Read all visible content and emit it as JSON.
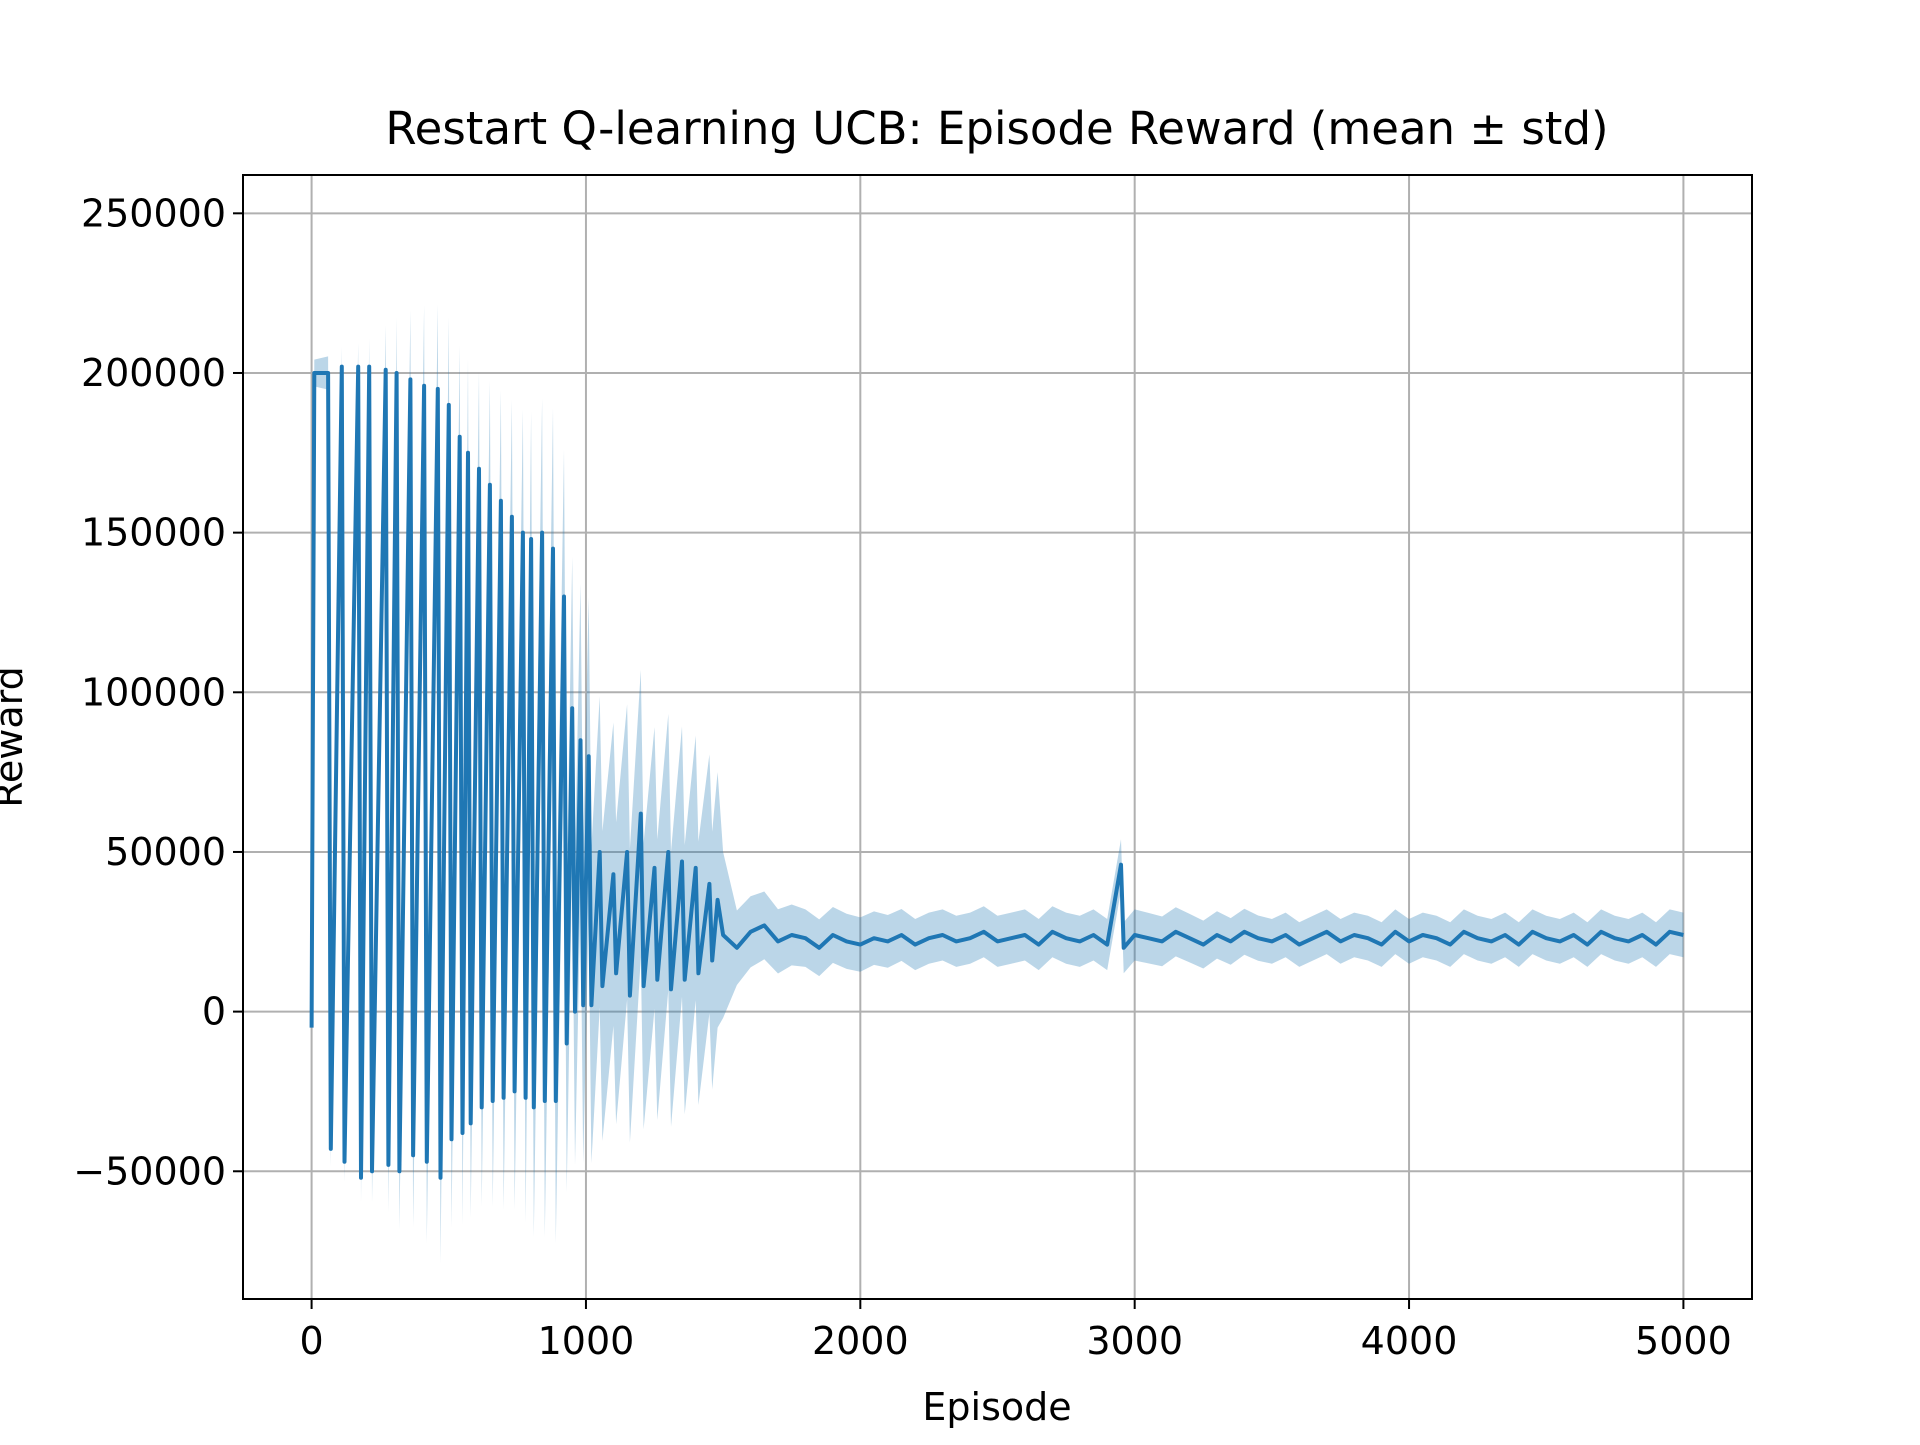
{
  "chart_data": {
    "type": "line",
    "title": "Restart Q-learning UCB: Episode Reward (mean ± std)",
    "xlabel": "Episode",
    "ylabel": "Reward",
    "xlim": [
      -250,
      5250
    ],
    "ylim": [
      -90000,
      262000
    ],
    "xticks": [
      0,
      1000,
      2000,
      3000,
      4000,
      5000
    ],
    "xtick_labels": [
      "0",
      "1000",
      "2000",
      "3000",
      "4000",
      "5000"
    ],
    "yticks": [
      -50000,
      0,
      50000,
      100000,
      150000,
      200000,
      250000
    ],
    "ytick_labels": [
      "−50000",
      "0",
      "50000",
      "100000",
      "150000",
      "200000",
      "250000"
    ],
    "grid": true,
    "legend": "none",
    "colors": {
      "mean": "#1f77b4",
      "band": "#1f77b4",
      "band_opacity": 0.3,
      "grid": "#b0b0b0"
    },
    "series": [
      {
        "stat": "mean",
        "x": [
          0,
          10,
          60,
          70,
          110,
          120,
          170,
          180,
          210,
          220,
          270,
          280,
          310,
          320,
          360,
          370,
          410,
          420,
          460,
          470,
          500,
          510,
          540,
          550,
          570,
          580,
          610,
          620,
          650,
          660,
          690,
          700,
          730,
          740,
          770,
          780,
          800,
          810,
          840,
          850,
          880,
          890,
          920,
          930,
          950,
          960,
          980,
          990,
          1010,
          1020,
          1050,
          1060,
          1100,
          1110,
          1150,
          1160,
          1200,
          1210,
          1250,
          1260,
          1300,
          1310,
          1350,
          1360,
          1400,
          1410,
          1450,
          1460,
          1480,
          1500,
          1550,
          1600,
          1650,
          1700,
          1750,
          1800,
          1850,
          1900,
          1950,
          2000,
          2050,
          2100,
          2150,
          2200,
          2250,
          2300,
          2350,
          2400,
          2450,
          2500,
          2550,
          2600,
          2650,
          2700,
          2750,
          2800,
          2850,
          2900,
          2950,
          2960,
          3000,
          3050,
          3100,
          3150,
          3200,
          3250,
          3300,
          3350,
          3400,
          3450,
          3500,
          3550,
          3600,
          3650,
          3700,
          3750,
          3800,
          3850,
          3900,
          3950,
          4000,
          4050,
          4100,
          4150,
          4200,
          4250,
          4300,
          4350,
          4400,
          4450,
          4500,
          4550,
          4600,
          4650,
          4700,
          4750,
          4800,
          4850,
          4900,
          4950,
          5000
        ],
        "y": [
          -5000,
          200000,
          200000,
          -43000,
          202000,
          -47000,
          202000,
          -52000,
          202000,
          -50000,
          201000,
          -48000,
          200000,
          -50000,
          198000,
          -45000,
          196000,
          -47000,
          195000,
          -52000,
          190000,
          -40000,
          180000,
          -38000,
          175000,
          -35000,
          170000,
          -30000,
          165000,
          -28000,
          160000,
          -27000,
          155000,
          -25000,
          150000,
          -27000,
          148000,
          -30000,
          150000,
          -28000,
          145000,
          -28000,
          130000,
          -10000,
          95000,
          0,
          85000,
          2000,
          80000,
          2000,
          50000,
          8000,
          43000,
          12000,
          50000,
          5000,
          62000,
          8000,
          45000,
          10000,
          50000,
          7000,
          47000,
          10000,
          45000,
          12000,
          40000,
          16000,
          35000,
          24000,
          20000,
          25000,
          27000,
          22000,
          24000,
          23000,
          20000,
          24000,
          22000,
          21000,
          23000,
          22000,
          24000,
          21000,
          23000,
          24000,
          22000,
          23000,
          25000,
          22000,
          23000,
          24000,
          21000,
          25000,
          23000,
          22000,
          24000,
          21000,
          46000,
          20000,
          24000,
          23000,
          22000,
          25000,
          23000,
          21000,
          24000,
          22000,
          25000,
          23000,
          22000,
          24000,
          21000,
          23000,
          25000,
          22000,
          24000,
          23000,
          21000,
          25000,
          22000,
          24000,
          23000,
          21000,
          25000,
          23000,
          22000,
          24000,
          21000,
          25000,
          23000,
          22000,
          24000,
          21000,
          25000,
          23000,
          22000,
          24000,
          21000,
          25000,
          24000
        ]
      },
      {
        "stat": "std",
        "x": [
          0,
          200,
          400,
          600,
          800,
          1000,
          1200,
          1480,
          1520,
          1800,
          2200,
          2600,
          2950,
          3000,
          3500,
          4000,
          4500,
          5000
        ],
        "y": [
          4000,
          8000,
          25000,
          30000,
          40000,
          50000,
          45000,
          40000,
          12000,
          9000,
          8000,
          8000,
          8000,
          8000,
          7000,
          7000,
          7000,
          7000
        ]
      }
    ]
  }
}
